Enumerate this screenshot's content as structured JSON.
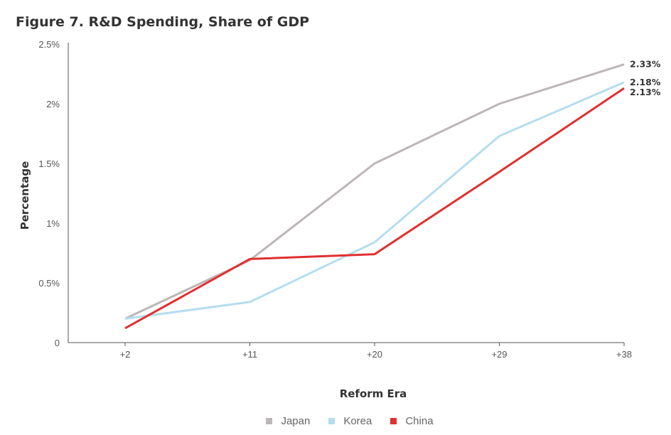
{
  "chart_data": {
    "type": "line",
    "title": "Figure 7. R&D Spending, Share of GDP",
    "xlabel": "Reform Era",
    "ylabel": "Percentage",
    "categories": [
      "+2",
      "+11",
      "+20",
      "+29",
      "+38"
    ],
    "ylim": [
      0,
      2.5
    ],
    "yticks": [
      0,
      0.5,
      1,
      1.5,
      2,
      2.5
    ],
    "ytick_labels": [
      "0",
      "0.5%",
      "1%",
      "1.5%",
      "2%",
      "2.5%"
    ],
    "grid": false,
    "legend_position": "bottom-center",
    "series": [
      {
        "name": "Japan",
        "color": "#bdb6b6",
        "values": [
          0.2,
          0.69,
          1.5,
          2.0,
          2.33
        ],
        "end_label": "2.33%"
      },
      {
        "name": "Korea",
        "color": "#b5ddef",
        "values": [
          0.2,
          0.34,
          0.84,
          1.73,
          2.18
        ],
        "end_label": "2.18%"
      },
      {
        "name": "China",
        "color": "#e03030",
        "values": [
          0.12,
          0.7,
          0.74,
          1.43,
          2.13
        ],
        "end_label": "2.13%"
      }
    ]
  }
}
